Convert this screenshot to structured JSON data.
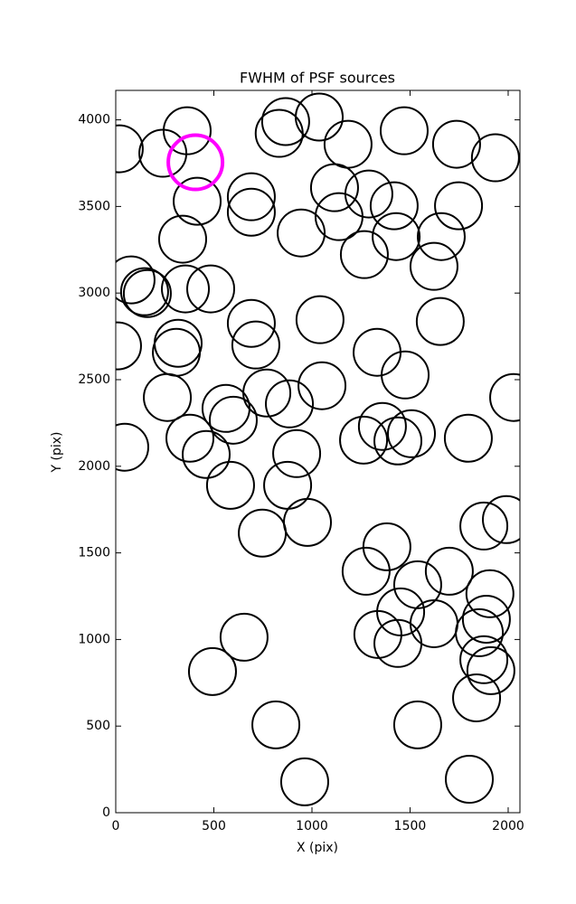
{
  "chart_data": {
    "type": "scatter",
    "title": "FWHM of PSF sources",
    "x_label": "X (pix)",
    "y_label": "Y (pix)",
    "xlim": [
      0,
      2060
    ],
    "ylim": [
      0,
      4170
    ],
    "xticks": [
      0,
      500,
      1000,
      1500,
      2000
    ],
    "yticks": [
      0,
      500,
      1000,
      1500,
      2000,
      2500,
      3000,
      3500,
      4000
    ],
    "series": [
      {
        "color": "#000000",
        "x": [
          18,
          364,
          240,
          415,
          691,
          691,
          341,
          78,
          147,
          161,
          355,
          484,
          866,
          833,
          1037,
          1184,
          1470,
          1737,
          1935,
          1115,
          1290,
          1419,
          1747,
          1138,
          945,
          1429,
          1267,
          1659,
          1622,
          1041,
          691,
          714,
          1654,
          9,
          318,
          309,
          1332,
          1475,
          1051,
          263,
          562,
          599,
          770,
          885,
          2028,
          46,
          378,
          461,
          922,
          585,
          876,
          977,
          747,
          1263,
          1359,
          1438,
          1507,
          1797,
          1876,
          1991,
          1382,
          1276,
          1539,
          1700,
          1907,
          1889,
          1853,
          1452,
          1622,
          1336,
          1438,
          1876,
          1912,
          1839,
          654,
          493,
          816,
          1539,
          963,
          1802
        ],
        "y": [
          3833,
          3937,
          3807,
          3530,
          3556,
          3467,
          3311,
          3076,
          3008,
          2997,
          3024,
          3024,
          3990,
          3922,
          4016,
          3859,
          3937,
          3859,
          3781,
          3608,
          3572,
          3504,
          3504,
          3441,
          3347,
          3326,
          3222,
          3326,
          3154,
          2846,
          2825,
          2700,
          2836,
          2695,
          2710,
          2658,
          2658,
          2527,
          2465,
          2397,
          2334,
          2266,
          2423,
          2360,
          2397,
          2110,
          2162,
          2068,
          2073,
          1890,
          1890,
          1676,
          1614,
          2151,
          2230,
          2146,
          2188,
          2162,
          1655,
          1692,
          1535,
          1394,
          1316,
          1394,
          1264,
          1117,
          1039,
          1159,
          1091,
          1029,
          977,
          883,
          820,
          663,
          1013,
          815,
          507,
          507,
          178,
          193
        ]
      },
      {
        "color": "#ff00ff",
        "x": [
          406
        ],
        "y": [
          3755
        ]
      }
    ]
  }
}
